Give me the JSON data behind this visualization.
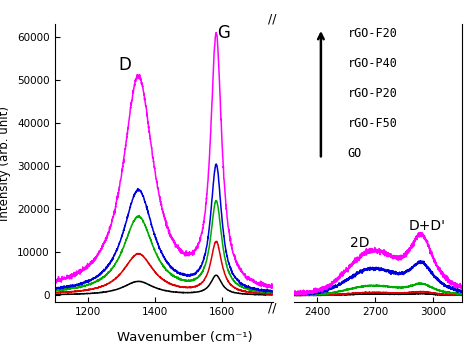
{
  "xlabel": "Wavenumber (cm⁻¹)",
  "ylabel": "Intensity (arb. unit)",
  "ylim": [
    -1500,
    63000
  ],
  "yticks": [
    0,
    10000,
    20000,
    30000,
    40000,
    50000,
    60000
  ],
  "colors": {
    "GO": "#000000",
    "rGO-F50": "#dd0000",
    "rGO-P20": "#00aa00",
    "rGO-P40": "#0000dd",
    "rGO-F20": "#ff00ff"
  },
  "legend_labels": [
    "rGO-F20",
    "rGO-P40",
    "rGO-P20",
    "rGO-F50",
    "GO"
  ],
  "background_color": "#ffffff",
  "params": {
    "GO": [
      3200,
      4500,
      300,
      400
    ],
    "rGO-F50": [
      9500,
      12000,
      600,
      800
    ],
    "rGO-P20": [
      18000,
      21000,
      2000,
      2500
    ],
    "rGO-P40": [
      24000,
      29000,
      5500,
      7000
    ],
    "rGO-F20": [
      50000,
      58000,
      9000,
      13000
    ]
  }
}
